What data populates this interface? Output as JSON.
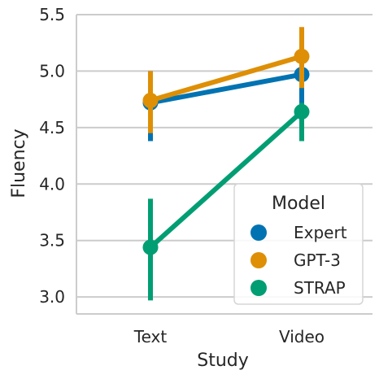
{
  "chart_data": {
    "type": "line",
    "xlabel": "Study",
    "ylabel": "Fluency",
    "categories": [
      "Text",
      "Video"
    ],
    "ylim": [
      2.85,
      5.5
    ],
    "yticks": [
      3.0,
      3.5,
      4.0,
      4.5,
      5.0,
      5.5
    ],
    "ytick_labels": [
      "3.0",
      "3.5",
      "4.0",
      "4.5",
      "5.0",
      "5.5"
    ],
    "grid": true,
    "legend": {
      "title": "Model",
      "placement": "lower-right"
    },
    "series": [
      {
        "name": "Expert",
        "color": "#0173b2",
        "values": [
          4.72,
          4.97
        ],
        "ci_low": [
          4.38,
          4.72
        ],
        "ci_high": [
          5.0,
          5.2
        ]
      },
      {
        "name": "GPT-3",
        "color": "#de8f05",
        "values": [
          4.74,
          5.13
        ],
        "ci_low": [
          4.45,
          4.85
        ],
        "ci_high": [
          5.0,
          5.39
        ]
      },
      {
        "name": "STRAP",
        "color": "#029e73",
        "values": [
          3.44,
          4.64
        ],
        "ci_low": [
          2.97,
          4.38
        ],
        "ci_high": [
          3.87,
          4.92
        ]
      }
    ]
  }
}
